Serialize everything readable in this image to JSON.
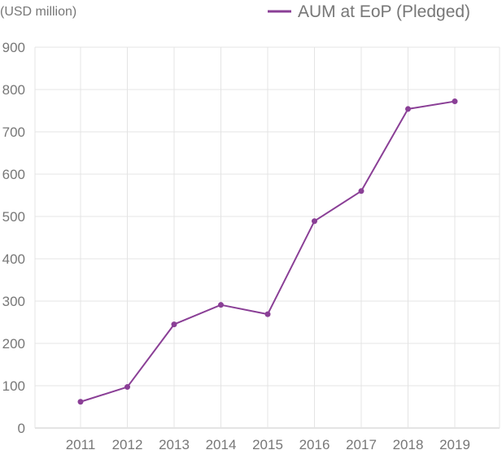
{
  "chart_data": {
    "type": "line",
    "unit_label": "(USD million)",
    "categories": [
      "2011",
      "2012",
      "2013",
      "2014",
      "2015",
      "2016",
      "2017",
      "2018",
      "2019"
    ],
    "series": [
      {
        "name": "AUM at EoP (Pledged)",
        "values": [
          62,
          97,
          245,
          291,
          269,
          489,
          560,
          754,
          772
        ]
      }
    ],
    "ylim": [
      0,
      900
    ],
    "yticks": [
      0,
      100,
      200,
      300,
      400,
      500,
      600,
      700,
      800,
      900
    ],
    "grid": true,
    "legend_position": "top-right",
    "colors": {
      "series": "#8a3f96",
      "grid": "#e4e4e4",
      "axis": "#c8c8c8",
      "text": "#777777"
    }
  }
}
